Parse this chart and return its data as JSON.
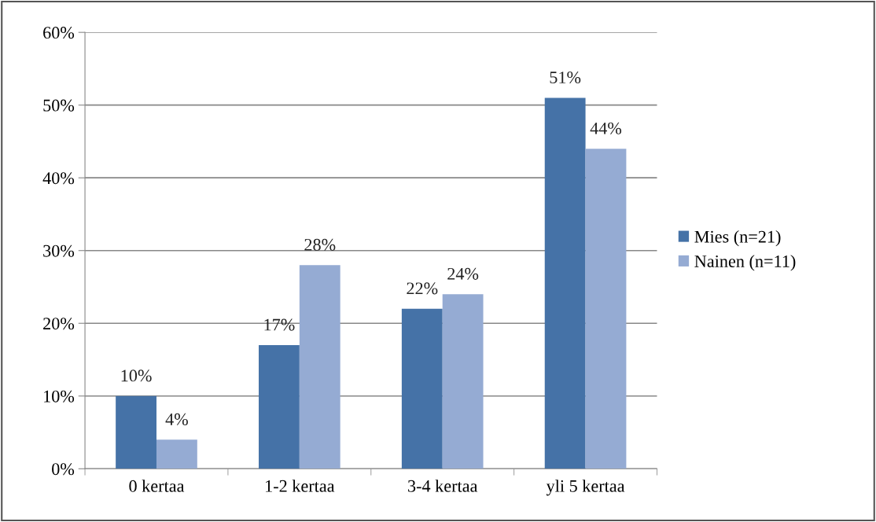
{
  "chart_data": {
    "type": "bar",
    "categories": [
      "0 kertaa",
      "1-2 kertaa",
      "3-4 kertaa",
      "yli 5 kertaa"
    ],
    "series": [
      {
        "name": "Mies (n=21)",
        "color": "#4572a7",
        "values": [
          10,
          17,
          22,
          51
        ],
        "value_labels": [
          "10%",
          "17%",
          "22%",
          "51%"
        ]
      },
      {
        "name": "Nainen (n=11)",
        "color": "#95abd3",
        "values": [
          4,
          28,
          24,
          44
        ],
        "value_labels": [
          "4%",
          "28%",
          "24%",
          "44%"
        ]
      }
    ],
    "ylim": [
      0,
      60
    ],
    "yticks": [
      {
        "value": 0,
        "label": "0%"
      },
      {
        "value": 10,
        "label": "10%"
      },
      {
        "value": 20,
        "label": "20%"
      },
      {
        "value": 30,
        "label": "30%"
      },
      {
        "value": 40,
        "label": "40%"
      },
      {
        "value": 50,
        "label": "50%"
      },
      {
        "value": 60,
        "label": "60%"
      }
    ],
    "grid": "y",
    "legend": "right"
  }
}
